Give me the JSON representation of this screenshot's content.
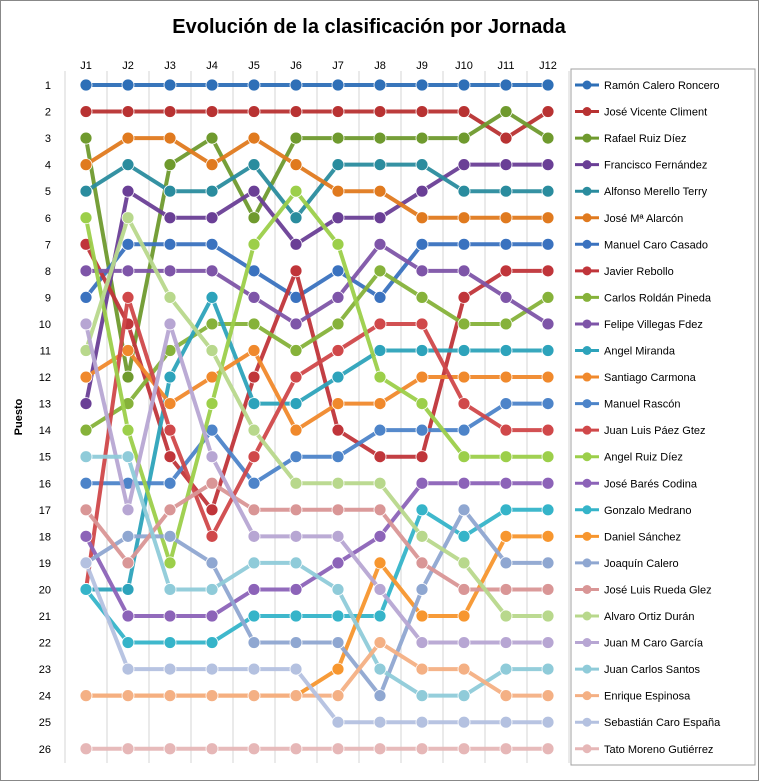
{
  "chart_data": {
    "type": "line",
    "title": "Evolución de la clasificación por Jornada",
    "ylabel": "Puesto",
    "xlabel": "",
    "categories": [
      "J1",
      "J2",
      "J3",
      "J4",
      "J5",
      "J6",
      "J7",
      "J8",
      "J9",
      "J10",
      "J11",
      "J12"
    ],
    "yticks": [
      "1",
      "2",
      "3",
      "4",
      "5",
      "6",
      "7",
      "8",
      "9",
      "10",
      "11",
      "12",
      "13",
      "14",
      "15",
      "16",
      "17",
      "18",
      "19",
      "20",
      "21",
      "22",
      "23",
      "24",
      "25",
      "26"
    ],
    "ylim": [
      1,
      26
    ],
    "y_reversed": true,
    "grid": "vertical",
    "legend_position": "right",
    "series": [
      {
        "name": "Ramón Calero Roncero",
        "color": "#2e6fb7",
        "values": [
          1,
          1,
          1,
          1,
          1,
          1,
          1,
          1,
          1,
          1,
          1,
          1
        ]
      },
      {
        "name": "José Vicente Climent",
        "color": "#b83232",
        "values": [
          2,
          2,
          2,
          2,
          2,
          2,
          2,
          2,
          2,
          2,
          3,
          2
        ]
      },
      {
        "name": "Rafael Ruiz Díez",
        "color": "#6f9a2e",
        "values": [
          3,
          12,
          4,
          3,
          6,
          3,
          3,
          3,
          3,
          3,
          2,
          3
        ]
      },
      {
        "name": "Francisco Fernández",
        "color": "#6a3f96",
        "values": [
          13,
          5,
          6,
          6,
          5,
          7,
          6,
          6,
          5,
          4,
          4,
          4
        ]
      },
      {
        "name": "Alfonso Merello Terry",
        "color": "#2a8c9e",
        "values": [
          5,
          4,
          5,
          5,
          4,
          6,
          4,
          4,
          4,
          5,
          5,
          5
        ]
      },
      {
        "name": "José Mª Alarcón",
        "color": "#e07a1f",
        "values": [
          4,
          3,
          3,
          4,
          3,
          4,
          5,
          5,
          6,
          6,
          6,
          6
        ]
      },
      {
        "name": "Manuel Caro Casado",
        "color": "#3a72bf",
        "values": [
          9,
          7,
          7,
          7,
          8,
          9,
          8,
          9,
          7,
          7,
          7,
          7
        ]
      },
      {
        "name": "Javier Rebollo",
        "color": "#c0353a",
        "values": [
          7,
          10,
          15,
          17,
          12,
          8,
          14,
          15,
          15,
          9,
          8,
          8
        ]
      },
      {
        "name": "Carlos Roldán  Pineda",
        "color": "#86b23a",
        "values": [
          14,
          13,
          11,
          10,
          10,
          11,
          10,
          8,
          9,
          10,
          10,
          9
        ]
      },
      {
        "name": "Felipe Villegas Fdez",
        "color": "#7e55a8",
        "values": [
          8,
          8,
          8,
          8,
          9,
          10,
          9,
          7,
          8,
          8,
          9,
          10
        ]
      },
      {
        "name": "Angel Miranda",
        "color": "#2da3bb",
        "values": [
          20,
          20,
          12,
          9,
          13,
          13,
          12,
          11,
          11,
          11,
          11,
          11
        ]
      },
      {
        "name": "Santiago Carmona",
        "color": "#f0892c",
        "values": [
          12,
          11,
          13,
          12,
          11,
          14,
          13,
          13,
          12,
          12,
          12,
          12
        ]
      },
      {
        "name": "Manuel Rascón",
        "color": "#4d84c9",
        "values": [
          16,
          16,
          16,
          14,
          16,
          15,
          15,
          14,
          14,
          14,
          13,
          13
        ]
      },
      {
        "name": "Juan Luis Páez Gtez",
        "color": "#d0484a",
        "values": [
          20,
          9,
          14,
          18,
          15,
          12,
          11,
          10,
          10,
          13,
          14,
          14
        ]
      },
      {
        "name": "Angel Ruiz Díez",
        "color": "#9ccf4a",
        "values": [
          6,
          14,
          19,
          13,
          7,
          5,
          7,
          12,
          13,
          15,
          15,
          15
        ]
      },
      {
        "name": "José Barés Codina",
        "color": "#8c63b8",
        "values": [
          18,
          21,
          21,
          21,
          20,
          20,
          19,
          18,
          16,
          16,
          16,
          16
        ]
      },
      {
        "name": "Gonzalo Medrano",
        "color": "#35b4c9",
        "values": [
          20,
          22,
          22,
          22,
          21,
          21,
          21,
          21,
          17,
          18,
          17,
          17
        ]
      },
      {
        "name": "Daniel Sánchez",
        "color": "#f7962e",
        "values": [
          24,
          24,
          24,
          24,
          24,
          24,
          23,
          19,
          21,
          21,
          18,
          18
        ]
      },
      {
        "name": "Joaquín Calero",
        "color": "#8fa7d1",
        "values": [
          19,
          18,
          18,
          19,
          22,
          22,
          22,
          24,
          20,
          17,
          19,
          19
        ]
      },
      {
        "name": "José Luis Rueda Glez",
        "color": "#d99696",
        "values": [
          17,
          19,
          17,
          16,
          17,
          17,
          17,
          17,
          19,
          20,
          20,
          20
        ]
      },
      {
        "name": "Alvaro Ortiz Durán",
        "color": "#b8d88c",
        "values": [
          11,
          6,
          9,
          11,
          14,
          16,
          16,
          16,
          18,
          19,
          21,
          21
        ]
      },
      {
        "name": "Juan M Caro García",
        "color": "#b7a6d3",
        "values": [
          10,
          17,
          10,
          15,
          18,
          18,
          18,
          20,
          22,
          22,
          22,
          22
        ]
      },
      {
        "name": "Juan Carlos Santos",
        "color": "#8fcbd9",
        "values": [
          15,
          15,
          20,
          20,
          19,
          19,
          20,
          23,
          24,
          24,
          23,
          23
        ]
      },
      {
        "name": "Enrique Espinosa",
        "color": "#f4b084",
        "values": [
          24,
          24,
          24,
          24,
          24,
          24,
          24,
          22,
          23,
          23,
          24,
          24
        ]
      },
      {
        "name": "Sebastián Caro España",
        "color": "#b4c1e0",
        "values": [
          19,
          23,
          23,
          23,
          23,
          23,
          25,
          25,
          25,
          25,
          25,
          25
        ]
      },
      {
        "name": "Tato Moreno Gutiérrez",
        "color": "#e6b7b7",
        "values": [
          26,
          26,
          26,
          26,
          26,
          26,
          26,
          26,
          26,
          26,
          26,
          26
        ]
      }
    ]
  }
}
